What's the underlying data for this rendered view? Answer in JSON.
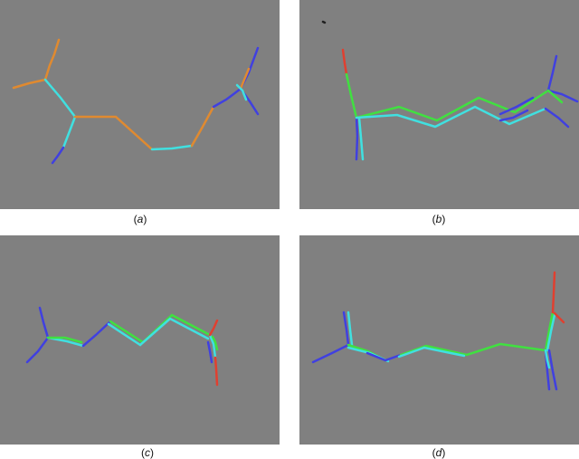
{
  "colors": {
    "background": "#808080",
    "cyan": "#40e0e0",
    "green": "#40e040",
    "orange": "#e08a30",
    "blue": "#4040e0",
    "red": "#e04030"
  },
  "panels": [
    {
      "id": "a",
      "caption_open": "(",
      "caption_letter": "a",
      "caption_close": ")"
    },
    {
      "id": "b",
      "caption_open": "(",
      "caption_letter": "b",
      "caption_close": ")"
    },
    {
      "id": "c",
      "caption_open": "(",
      "caption_letter": "c",
      "caption_close": ")"
    },
    {
      "id": "d",
      "caption_open": "(",
      "caption_letter": "d",
      "caption_close": ")"
    }
  ]
}
